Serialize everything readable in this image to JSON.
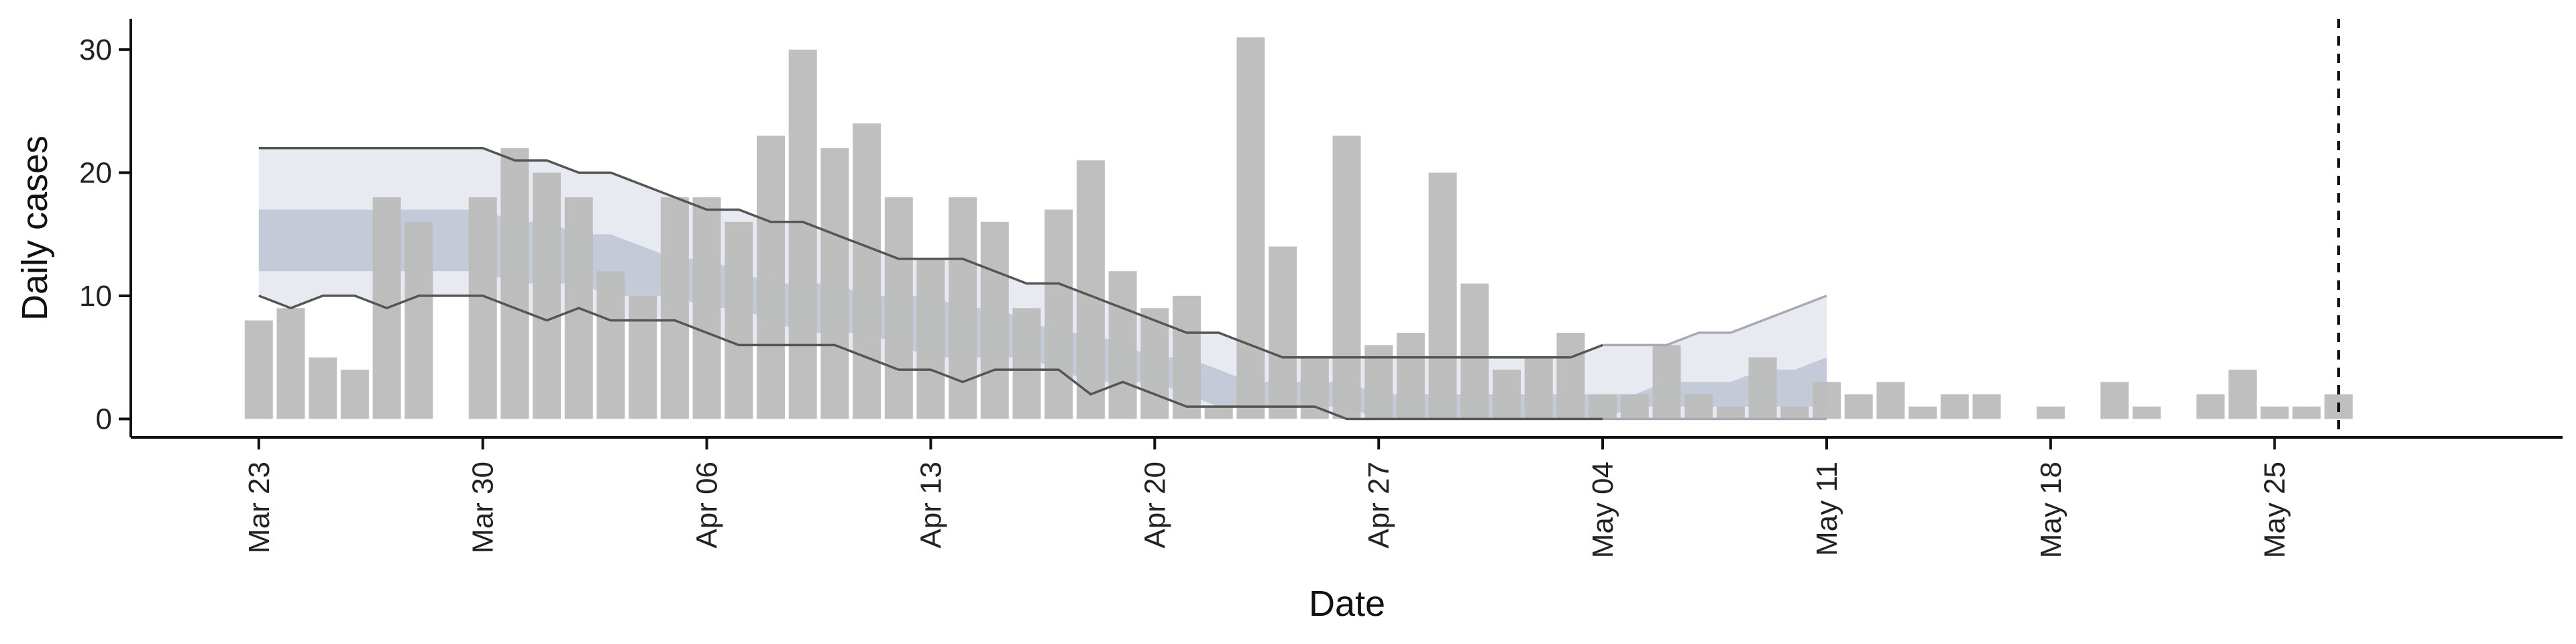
{
  "chart_data": {
    "type": "bar",
    "xlabel": "Date",
    "ylabel": "Daily cases",
    "ylim": [
      -1.5,
      32.5
    ],
    "yticks": [
      0,
      10,
      20,
      30
    ],
    "x_start": "2020-03-23",
    "x_range": [
      "2020-03-19",
      "2020-06-03"
    ],
    "xticks": [
      {
        "date": "2020-03-23",
        "label": "Mar 23"
      },
      {
        "date": "2020-03-30",
        "label": "Mar 30"
      },
      {
        "date": "2020-04-06",
        "label": "Apr 06"
      },
      {
        "date": "2020-04-13",
        "label": "Apr 13"
      },
      {
        "date": "2020-04-20",
        "label": "Apr 20"
      },
      {
        "date": "2020-04-27",
        "label": "Apr 27"
      },
      {
        "date": "2020-05-04",
        "label": "May 04"
      },
      {
        "date": "2020-05-11",
        "label": "May 11"
      },
      {
        "date": "2020-05-18",
        "label": "May 18"
      },
      {
        "date": "2020-05-25",
        "label": "May 25"
      }
    ],
    "daily_cases": [
      8,
      9,
      5,
      4,
      18,
      16,
      0,
      18,
      22,
      20,
      18,
      12,
      10,
      18,
      18,
      16,
      23,
      30,
      22,
      24,
      18,
      13,
      18,
      16,
      9,
      17,
      21,
      12,
      9,
      10,
      1,
      31,
      14,
      5,
      23,
      6,
      7,
      20,
      11,
      4,
      5,
      7,
      2,
      2,
      6,
      2,
      1,
      5,
      1,
      3,
      2,
      3,
      1,
      2,
      2,
      0,
      1,
      0,
      3,
      1,
      0,
      2,
      4,
      1,
      1,
      2
    ],
    "forecast": {
      "outer_upper": [
        22,
        22,
        22,
        22,
        22,
        22,
        22,
        22,
        21,
        21,
        20,
        20,
        19,
        18,
        17,
        17,
        16,
        16,
        15,
        14,
        13,
        13,
        13,
        12,
        11,
        11,
        10,
        9,
        8,
        7,
        7,
        6,
        5,
        5,
        5,
        5,
        5,
        5,
        5,
        5,
        5,
        5,
        6,
        6,
        6,
        7,
        7,
        8,
        9,
        10
      ],
      "inner_upper": [
        17,
        17,
        17,
        17,
        17,
        17,
        17,
        17,
        16,
        16,
        15,
        15,
        14,
        13,
        13,
        12,
        11,
        11,
        11,
        10,
        10,
        10,
        9,
        9,
        8,
        7,
        7,
        6,
        5,
        5,
        4,
        3,
        3,
        3,
        3,
        2,
        2,
        2,
        2,
        2,
        2,
        2,
        2,
        2,
        3,
        3,
        3,
        4,
        4,
        5
      ],
      "inner_lower": [
        12,
        12,
        12,
        12,
        12,
        12,
        12,
        12,
        11,
        11,
        11,
        10,
        10,
        10,
        9,
        9,
        8,
        7,
        7,
        7,
        6,
        5,
        5,
        5,
        5,
        4,
        3,
        3,
        3,
        2,
        1,
        1,
        1,
        1,
        1,
        0,
        0,
        0,
        0,
        0,
        0,
        0,
        0,
        1,
        1,
        1,
        1,
        1,
        1,
        1
      ],
      "outer_lower": [
        10,
        9,
        10,
        10,
        9,
        10,
        10,
        10,
        9,
        8,
        9,
        8,
        8,
        8,
        7,
        6,
        6,
        6,
        6,
        5,
        4,
        4,
        3,
        4,
        4,
        4,
        2,
        3,
        2,
        1,
        1,
        1,
        1,
        1,
        0,
        0,
        0,
        0,
        0,
        0,
        0,
        0,
        0,
        0,
        0,
        0,
        0,
        0,
        0,
        0
      ],
      "solid_until_index": 42
    },
    "vline_date": "2020-05-27",
    "colors": {
      "bars": "#bcbcbc",
      "outer_band": "#e8eaf2",
      "inner_band": "#c5cad9",
      "band_line": "#555555",
      "axis": "#111111"
    }
  }
}
